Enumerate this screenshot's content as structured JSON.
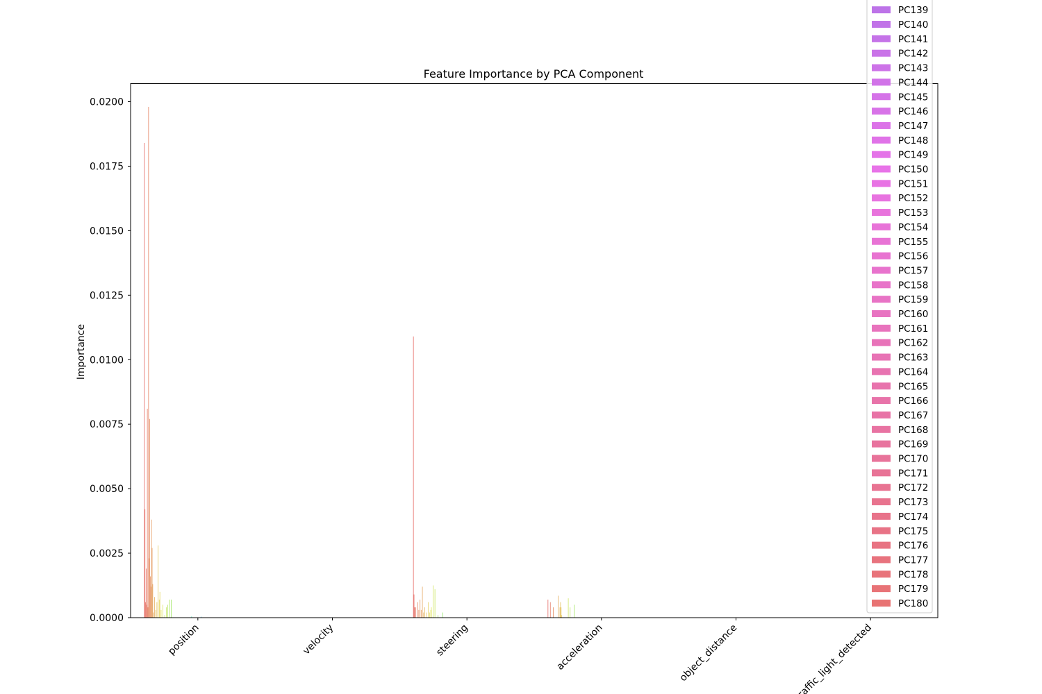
{
  "chart_data": {
    "type": "bar",
    "title": "Feature Importance by PCA Component",
    "xlabel": "",
    "ylabel": "Importance",
    "ylim": [
      0,
      0.0207
    ],
    "grid": false,
    "legend_placement": "top-right (overflowing above plot)",
    "categories": [
      "position",
      "velocity",
      "steering",
      "acceleration",
      "object_distance",
      "traffic_light_detected"
    ],
    "y_ticks": [
      "0.0000",
      "0.0025",
      "0.0050",
      "0.0075",
      "0.0100",
      "0.0125",
      "0.0150",
      "0.0175",
      "0.0200"
    ],
    "num_components": 180,
    "nonzero_bars": [
      {
        "category": "position",
        "component": 1,
        "value": 0.0184
      },
      {
        "category": "position",
        "component": 2,
        "value": 0.0042
      },
      {
        "category": "position",
        "component": 3,
        "value": 0.0006
      },
      {
        "category": "position",
        "component": 4,
        "value": 0.0019
      },
      {
        "category": "position",
        "component": 5,
        "value": 0.0005
      },
      {
        "category": "position",
        "component": 6,
        "value": 0.0081
      },
      {
        "category": "position",
        "component": 7,
        "value": 0.0004
      },
      {
        "category": "position",
        "component": 8,
        "value": 0.0198
      },
      {
        "category": "position",
        "component": 9,
        "value": 0.0023
      },
      {
        "category": "position",
        "component": 10,
        "value": 0.0077
      },
      {
        "category": "position",
        "component": 11,
        "value": 0.0016
      },
      {
        "category": "position",
        "component": 12,
        "value": 0.0012
      },
      {
        "category": "position",
        "component": 13,
        "value": 0.0038
      },
      {
        "category": "position",
        "component": 14,
        "value": 0.0027
      },
      {
        "category": "position",
        "component": 15,
        "value": 0.0013
      },
      {
        "category": "position",
        "component": 16,
        "value": 0.0002
      },
      {
        "category": "position",
        "component": 18,
        "value": 0.0008
      },
      {
        "category": "position",
        "component": 20,
        "value": 0.0003
      },
      {
        "category": "position",
        "component": 22,
        "value": 0.0006
      },
      {
        "category": "position",
        "component": 24,
        "value": 0.0028
      },
      {
        "category": "position",
        "component": 26,
        "value": 0.0007
      },
      {
        "category": "position",
        "component": 27,
        "value": 0.001
      },
      {
        "category": "position",
        "component": 29,
        "value": 0.0003
      },
      {
        "category": "position",
        "component": 32,
        "value": 0.0005
      },
      {
        "category": "position",
        "component": 35,
        "value": 0.0001
      },
      {
        "category": "position",
        "component": 38,
        "value": 0.0004
      },
      {
        "category": "position",
        "component": 40,
        "value": 0.0005
      },
      {
        "category": "position",
        "component": 43,
        "value": 0.0007
      },
      {
        "category": "position",
        "component": 46,
        "value": 0.0007
      },
      {
        "category": "position",
        "component": 80,
        "value": 5e-05
      },
      {
        "category": "position",
        "component": 96,
        "value": 4e-05
      },
      {
        "category": "steering",
        "component": 1,
        "value": 0.0109
      },
      {
        "category": "steering",
        "component": 2,
        "value": 0.0009
      },
      {
        "category": "steering",
        "component": 3,
        "value": 0.0004
      },
      {
        "category": "steering",
        "component": 5,
        "value": 0.0004
      },
      {
        "category": "steering",
        "component": 8,
        "value": 0.0006
      },
      {
        "category": "steering",
        "component": 10,
        "value": 0.0003
      },
      {
        "category": "steering",
        "component": 12,
        "value": 0.0007
      },
      {
        "category": "steering",
        "component": 14,
        "value": 0.0003
      },
      {
        "category": "steering",
        "component": 16,
        "value": 0.0012
      },
      {
        "category": "steering",
        "component": 18,
        "value": 0.0002
      },
      {
        "category": "steering",
        "component": 20,
        "value": 0.0004
      },
      {
        "category": "steering",
        "component": 23,
        "value": 0.0002
      },
      {
        "category": "steering",
        "component": 26,
        "value": 0.0006
      },
      {
        "category": "steering",
        "component": 28,
        "value": 0.0002
      },
      {
        "category": "steering",
        "component": 30,
        "value": 0.0003
      },
      {
        "category": "steering",
        "component": 31,
        "value": 0.0004
      },
      {
        "category": "steering",
        "component": 34,
        "value": 0.00125
      },
      {
        "category": "steering",
        "component": 37,
        "value": 0.0011
      },
      {
        "category": "steering",
        "component": 42,
        "value": 0.0001
      },
      {
        "category": "steering",
        "component": 50,
        "value": 0.0002
      },
      {
        "category": "acceleration",
        "component": 1,
        "value": 0.0007
      },
      {
        "category": "acceleration",
        "component": 5,
        "value": 0.0006
      },
      {
        "category": "acceleration",
        "component": 10,
        "value": 0.0004
      },
      {
        "category": "acceleration",
        "component": 18,
        "value": 0.00085
      },
      {
        "category": "acceleration",
        "component": 21,
        "value": 0.0004
      },
      {
        "category": "acceleration",
        "component": 22,
        "value": 0.0006
      },
      {
        "category": "acceleration",
        "component": 23,
        "value": 0.0004
      },
      {
        "category": "acceleration",
        "component": 24,
        "value": 0.0001
      },
      {
        "category": "acceleration",
        "component": 35,
        "value": 0.00075
      },
      {
        "category": "acceleration",
        "component": 38,
        "value": 0.0004
      },
      {
        "category": "acceleration",
        "component": 45,
        "value": 0.0005
      }
    ],
    "legend_entries": [
      "PC139",
      "PC140",
      "PC141",
      "PC142",
      "PC143",
      "PC144",
      "PC145",
      "PC146",
      "PC147",
      "PC148",
      "PC149",
      "PC150",
      "PC151",
      "PC152",
      "PC153",
      "PC154",
      "PC155",
      "PC156",
      "PC157",
      "PC158",
      "PC159",
      "PC160",
      "PC161",
      "PC162",
      "PC163",
      "PC164",
      "PC165",
      "PC166",
      "PC167",
      "PC168",
      "PC169",
      "PC170",
      "PC171",
      "PC172",
      "PC173",
      "PC174",
      "PC175",
      "PC176",
      "PC177",
      "PC178",
      "PC179",
      "PC180"
    ]
  }
}
